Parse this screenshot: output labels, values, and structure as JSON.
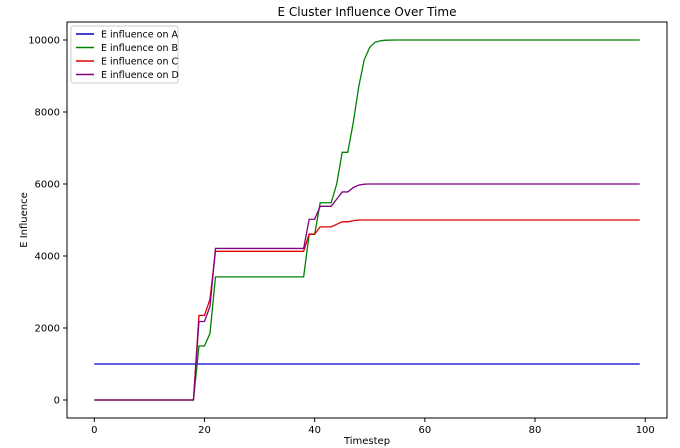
{
  "chart_data": {
    "type": "line",
    "title": "E Cluster Influence Over Time",
    "xlabel": "Timestep",
    "ylabel": "E Influence",
    "xlim": [
      -4.95,
      103.95
    ],
    "ylim": [
      -500,
      10500
    ],
    "xticks": [
      0,
      20,
      40,
      60,
      80,
      100
    ],
    "yticks": [
      0,
      2000,
      4000,
      6000,
      8000,
      10000
    ],
    "grid": false,
    "legend": "top-left",
    "series": [
      {
        "name": "E influence on A",
        "color": "#0000cc",
        "points": [
          [
            0,
            1000
          ],
          [
            99,
            1000
          ]
        ]
      },
      {
        "name": "E influence on B",
        "color": "#008000",
        "points": [
          [
            0,
            0
          ],
          [
            18,
            0
          ],
          [
            19,
            1500
          ],
          [
            20,
            1500
          ],
          [
            21,
            1850
          ],
          [
            22,
            3420
          ],
          [
            38,
            3420
          ],
          [
            39,
            4600
          ],
          [
            40,
            4600
          ],
          [
            41,
            5480
          ],
          [
            42,
            5480
          ],
          [
            43,
            5480
          ],
          [
            44,
            6000
          ],
          [
            45,
            6880
          ],
          [
            46,
            6880
          ],
          [
            47,
            7700
          ],
          [
            48,
            8700
          ],
          [
            49,
            9450
          ],
          [
            50,
            9800
          ],
          [
            51,
            9940
          ],
          [
            52,
            9980
          ],
          [
            53,
            9995
          ],
          [
            55,
            10000
          ],
          [
            99,
            10000
          ]
        ]
      },
      {
        "name": "E influence on C",
        "color": "#dd0000",
        "points": [
          [
            0,
            0
          ],
          [
            18,
            0
          ],
          [
            19,
            2350
          ],
          [
            20,
            2350
          ],
          [
            21,
            2800
          ],
          [
            22,
            4130
          ],
          [
            38,
            4130
          ],
          [
            39,
            4610
          ],
          [
            40,
            4610
          ],
          [
            41,
            4810
          ],
          [
            42,
            4810
          ],
          [
            43,
            4810
          ],
          [
            44,
            4880
          ],
          [
            45,
            4950
          ],
          [
            46,
            4950
          ],
          [
            47,
            4980
          ],
          [
            48,
            5000
          ],
          [
            99,
            5000
          ]
        ]
      },
      {
        "name": "E influence on D",
        "color": "#800080",
        "points": [
          [
            0,
            0
          ],
          [
            18,
            0
          ],
          [
            19,
            2180
          ],
          [
            20,
            2180
          ],
          [
            21,
            2600
          ],
          [
            22,
            4210
          ],
          [
            38,
            4210
          ],
          [
            39,
            5020
          ],
          [
            40,
            5020
          ],
          [
            41,
            5380
          ],
          [
            42,
            5380
          ],
          [
            43,
            5380
          ],
          [
            44,
            5580
          ],
          [
            45,
            5780
          ],
          [
            46,
            5780
          ],
          [
            47,
            5900
          ],
          [
            48,
            5970
          ],
          [
            49,
            5995
          ],
          [
            50,
            6000
          ],
          [
            99,
            6000
          ]
        ]
      }
    ]
  }
}
